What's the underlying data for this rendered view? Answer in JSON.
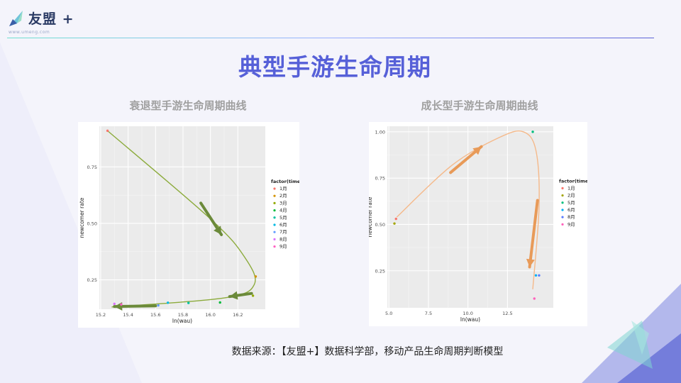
{
  "header": {
    "logo_text": "友盟 +",
    "logo_subtext": "www.umeng.com"
  },
  "page": {
    "title": "典型手游生命周期",
    "source": "数据来源：【友盟+】数据科学部，移动产品生命周期判断模型"
  },
  "colors": {
    "title": "#5660d8",
    "curve_left": "#8cab3c",
    "arrow_left": "#6b8a3a",
    "curve_right": "#f5b98a",
    "arrow_right": "#e89a58"
  },
  "chart_data": [
    {
      "type": "scatter",
      "title": "衰退型手游生命周期曲线",
      "xlabel": "ln(wau)",
      "ylabel": "newcomer rate",
      "xlim": [
        15.19,
        16.4
      ],
      "ylim": [
        0.12,
        0.93
      ],
      "xticks": [
        15.2,
        15.4,
        15.6,
        15.8,
        16.0,
        16.2
      ],
      "yticks": [
        0.25,
        0.5,
        0.75
      ],
      "xtick_labels": [
        "15.2",
        "15.4",
        "15.6",
        "15.8",
        "16.0",
        "16.2"
      ],
      "ytick_labels": [
        "0.25",
        "0.50",
        "0.75"
      ],
      "grid": true,
      "legend_title": "factor(time)",
      "legend_position": "right",
      "series": [
        {
          "name": "1月",
          "color": "#f8766d",
          "x": [
            15.25
          ],
          "y": [
            0.91
          ]
        },
        {
          "name": "2月",
          "color": "#d39200",
          "x": [
            16.33
          ],
          "y": [
            0.265
          ]
        },
        {
          "name": "3月",
          "color": "#93aa00",
          "x": [
            16.31
          ],
          "y": [
            0.18
          ]
        },
        {
          "name": "4月",
          "color": "#00ba38",
          "x": [
            16.07
          ],
          "y": [
            0.15
          ]
        },
        {
          "name": "5月",
          "color": "#00c19f",
          "x": [
            15.84
          ],
          "y": [
            0.148
          ]
        },
        {
          "name": "6月",
          "color": "#00b9e3",
          "x": [
            15.69
          ],
          "y": [
            0.149
          ]
        },
        {
          "name": "7月",
          "color": "#619cff",
          "x": [
            15.62
          ],
          "y": [
            0.137
          ]
        },
        {
          "name": "8月",
          "color": "#db72fb",
          "x": [
            15.3
          ],
          "y": [
            0.144
          ]
        },
        {
          "name": "9月",
          "color": "#ff61c3",
          "x": [
            15.35
          ],
          "y": [
            0.141
          ]
        }
      ],
      "trend": [
        [
          15.25,
          0.91
        ],
        [
          16.0,
          0.52
        ],
        [
          16.25,
          0.35
        ],
        [
          16.32,
          0.23
        ],
        [
          16.1,
          0.17
        ],
        [
          15.28,
          0.13
        ]
      ]
    },
    {
      "type": "scatter",
      "title": "成长型手游生命周期曲线",
      "xlabel": "ln(wau)",
      "ylabel": "newcomer rate",
      "xlim": [
        4.9,
        15.4
      ],
      "ylim": [
        0.05,
        1.03
      ],
      "xticks": [
        5.0,
        7.5,
        10.0,
        12.5
      ],
      "yticks": [
        0.25,
        0.5,
        0.75,
        1.0
      ],
      "xtick_labels": [
        "5.0",
        "7.5",
        "10.0",
        "12.5"
      ],
      "ytick_labels": [
        "0.25",
        "0.50",
        "0.75",
        "1.00"
      ],
      "grid": true,
      "legend_title": "factor(time)",
      "legend_position": "right",
      "series": [
        {
          "name": "1月",
          "color": "#f8766d",
          "x": [
            5.45
          ],
          "y": [
            0.53
          ]
        },
        {
          "name": "2月",
          "color": "#a3a500",
          "x": [
            5.35
          ],
          "y": [
            0.505
          ]
        },
        {
          "name": "5月",
          "color": "#00bf7d",
          "x": [
            14.1
          ],
          "y": [
            1.0
          ]
        },
        {
          "name": "6月",
          "color": "#00b0f6",
          "x": [
            14.3
          ],
          "y": [
            0.225
          ]
        },
        {
          "name": "8月",
          "color": "#5b7cff",
          "x": [
            14.5
          ],
          "y": [
            0.225
          ]
        },
        {
          "name": "9月",
          "color": "#ff62bc",
          "x": [
            14.2
          ],
          "y": [
            0.1
          ]
        }
      ],
      "trend": [
        [
          5.5,
          0.54
        ],
        [
          9.0,
          0.82
        ],
        [
          12.0,
          0.97
        ],
        [
          13.5,
          1.0
        ],
        [
          14.3,
          0.9
        ],
        [
          14.5,
          0.6
        ],
        [
          14.1,
          0.15
        ]
      ]
    }
  ]
}
